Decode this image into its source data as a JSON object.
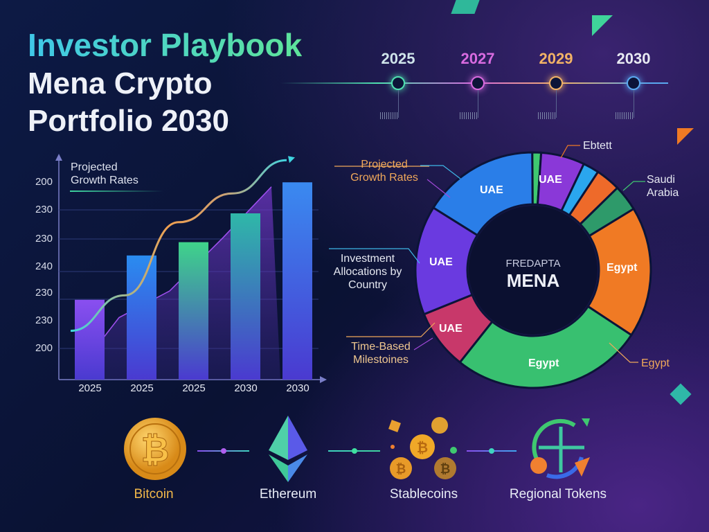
{
  "header": {
    "title_line1": "Investor Playbook",
    "title_line2": "Mena Crypto",
    "title_line3": "Portfolio 2030"
  },
  "timeline": [
    {
      "year": "2025",
      "color": "#4fe0b0"
    },
    {
      "year": "2027",
      "color": "#d86be0"
    },
    {
      "year": "2029",
      "color": "#f2b266"
    },
    {
      "year": "2030",
      "color": "#5aa8f0"
    }
  ],
  "chart_data": [
    {
      "type": "bar",
      "title": "Projected Growth Rates",
      "categories": [
        "2025",
        "2025",
        "2025",
        "2030",
        "2030"
      ],
      "values": [
        36,
        56,
        62,
        75,
        89
      ],
      "ylim": [
        0,
        100
      ],
      "y_tick_labels": [
        "200",
        "230",
        "230",
        "240",
        "230",
        "230",
        "200"
      ],
      "trend_line": [
        22,
        38,
        71,
        84,
        99
      ],
      "area_series": [
        3,
        28,
        40,
        64,
        87
      ],
      "bar_colors": [
        "#8a4ff0",
        "#2a8cf0",
        "#3fd48a",
        "#2fb8a8",
        "#3a8af0"
      ],
      "grid": true,
      "legend": "none"
    },
    {
      "type": "pie",
      "variant": "donut",
      "center_label_small": "FREDAPTA",
      "center_label": "MENA",
      "slices": [
        {
          "label": "UAE",
          "value": 16,
          "color": "#2a7ee8"
        },
        {
          "label": "",
          "value": 1.2,
          "color": "#3fc870"
        },
        {
          "label": "UAE",
          "value": 6,
          "color": "#8a38d8"
        },
        {
          "label": "",
          "value": 2.2,
          "color": "#2aa6ee"
        },
        {
          "label": "",
          "value": 3.4,
          "color": "#ee6a2a"
        },
        {
          "label": "",
          "value": 3.6,
          "color": "#2e9a6a"
        },
        {
          "label": "Egypt",
          "value": 18,
          "color": "#f07a24"
        },
        {
          "label": "Egypt",
          "value": 26.4,
          "color": "#38c070"
        },
        {
          "label": "UAE",
          "value": 8.2,
          "color": "#c8386a"
        },
        {
          "label": "UAE",
          "value": 15,
          "color": "#6a3ae0"
        }
      ],
      "callouts": [
        "Projected Growth Rates",
        "Investment Allocations by Country",
        "Time-Based Milestoines",
        "Ebtett",
        "Saudi Arabia",
        "Egypt"
      ]
    }
  ],
  "assets": [
    {
      "label": "Bitcoin",
      "icon": "bitcoin-icon",
      "color": "#f2b84a"
    },
    {
      "label": "Ethereum",
      "icon": "ethereum-icon",
      "color": "#e8ecf6"
    },
    {
      "label": "Stablecoins",
      "icon": "stablecoins-icon",
      "color": "#e8ecf6"
    },
    {
      "label": "Regional Tokens",
      "icon": "regional-tokens-icon",
      "color": "#e8ecf6"
    }
  ]
}
